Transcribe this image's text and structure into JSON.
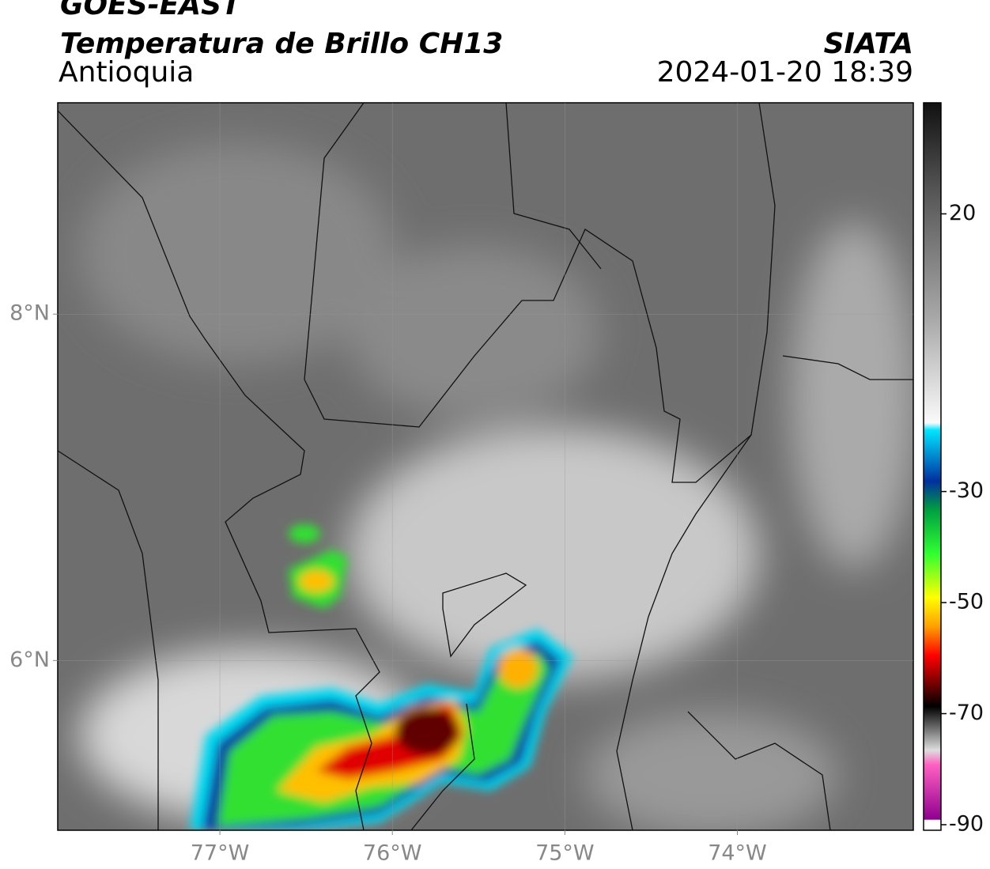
{
  "header": {
    "title": "GOES-EAST",
    "subtitle": "Temperatura de Brillo CH13",
    "region": "Antioquia",
    "source": "SIATA",
    "timestamp": "2024-01-20 18:39"
  },
  "map": {
    "xlim": [
      -77.94,
      -72.98
    ],
    "ylim": [
      5.02,
      9.22
    ],
    "xticks": [
      {
        "value": -77,
        "label": "77°W"
      },
      {
        "value": -76,
        "label": "76°W"
      },
      {
        "value": -75,
        "label": "75°W"
      },
      {
        "value": -74,
        "label": "74°W"
      }
    ],
    "yticks": [
      {
        "value": 8,
        "label": "8°N"
      },
      {
        "value": 6,
        "label": "6°N"
      }
    ],
    "grid": true
  },
  "colorbar": {
    "lim": [
      -91,
      40
    ],
    "ticks": [
      20,
      -30,
      -50,
      -70,
      -90
    ]
  }
}
